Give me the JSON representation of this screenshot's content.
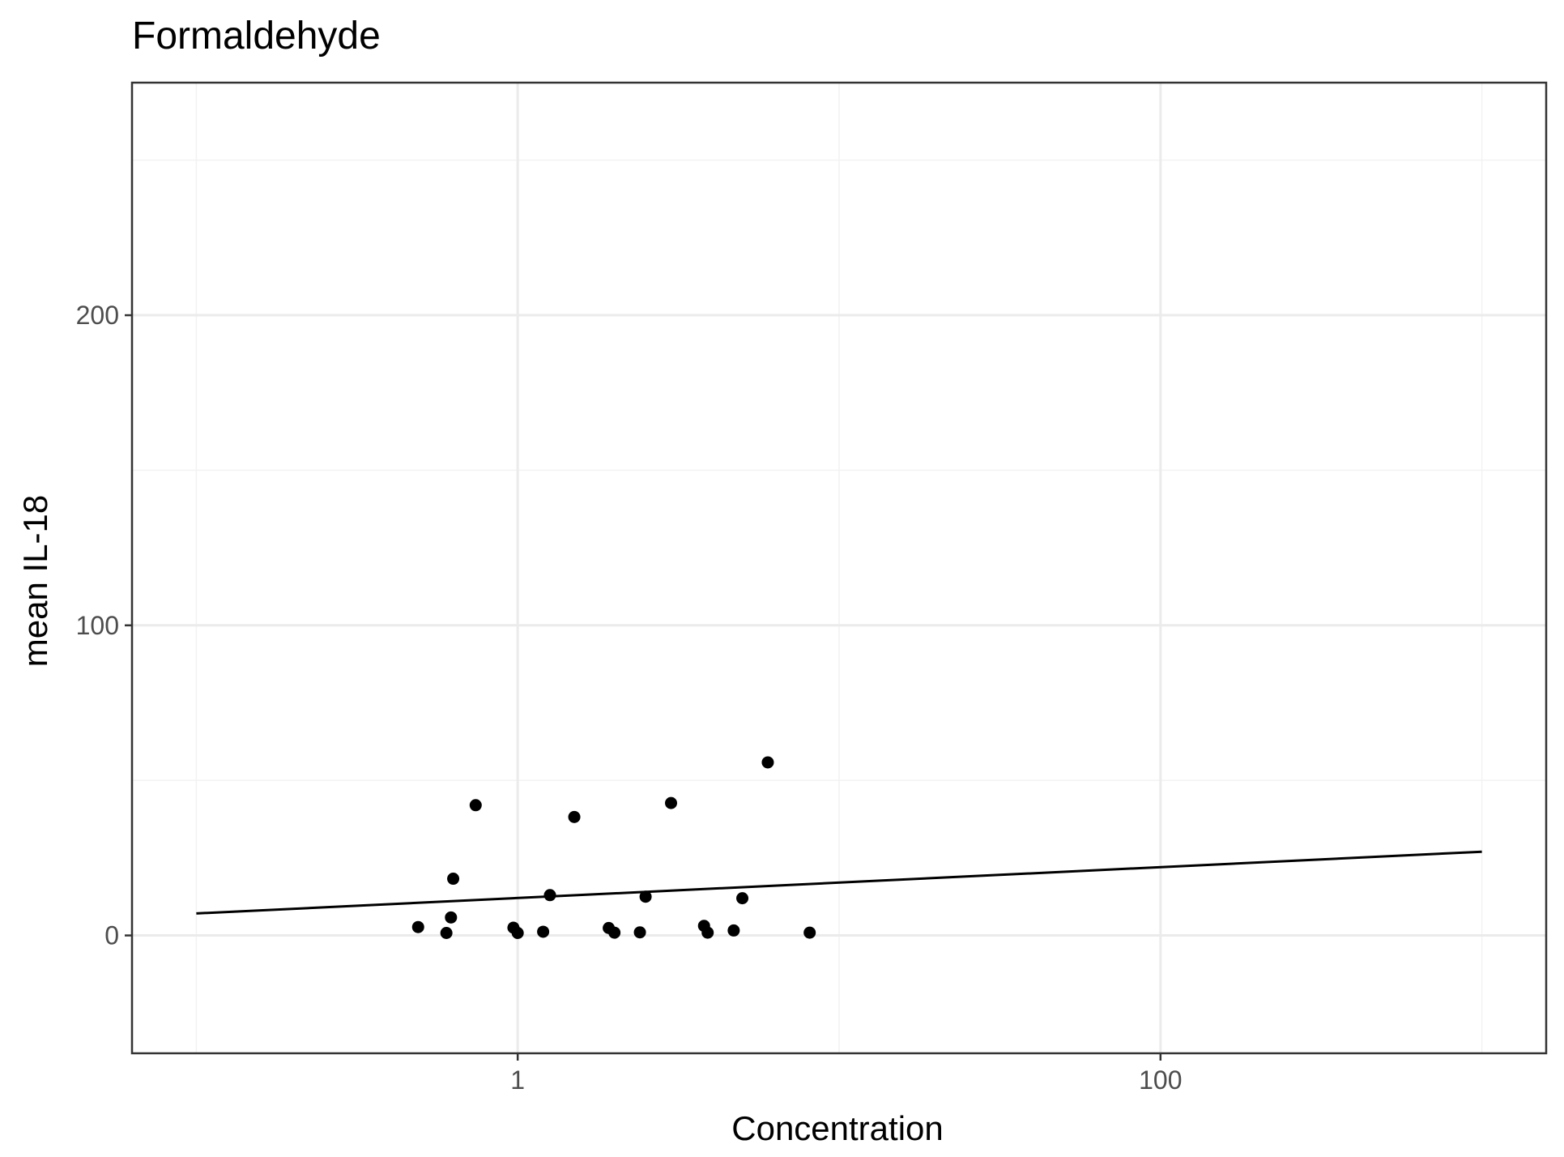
{
  "chart_data": {
    "type": "scatter",
    "title": "Formaldehyde",
    "xlabel": "Concentration",
    "ylabel": "mean IL-18",
    "x_scale": "log10",
    "xlim": [
      0.1,
      1000
    ],
    "ylim": [
      -38,
      275
    ],
    "x_ticks": [
      {
        "value": 1,
        "label": "1"
      },
      {
        "value": 100,
        "label": "100"
      }
    ],
    "x_minor_ticks": [
      0.1,
      10,
      1000
    ],
    "y_ticks": [
      {
        "value": 0,
        "label": "0"
      },
      {
        "value": 100,
        "label": "100"
      },
      {
        "value": 200,
        "label": "200"
      }
    ],
    "y_minor_ticks": [
      50,
      150,
      250
    ],
    "grid": true,
    "points": [
      {
        "x": 0.49,
        "y": 2.7
      },
      {
        "x": 0.6,
        "y": 0.8
      },
      {
        "x": 0.62,
        "y": 5.8
      },
      {
        "x": 0.63,
        "y": 18.3
      },
      {
        "x": 0.74,
        "y": 42
      },
      {
        "x": 0.97,
        "y": 2.5
      },
      {
        "x": 1.0,
        "y": 0.8
      },
      {
        "x": 1.2,
        "y": 1.2
      },
      {
        "x": 1.26,
        "y": 13
      },
      {
        "x": 1.5,
        "y": 38.2
      },
      {
        "x": 1.92,
        "y": 2.4
      },
      {
        "x": 2.0,
        "y": 0.9
      },
      {
        "x": 2.4,
        "y": 1.0
      },
      {
        "x": 2.5,
        "y": 12.5
      },
      {
        "x": 3.0,
        "y": 42.7
      },
      {
        "x": 3.8,
        "y": 3.1
      },
      {
        "x": 3.9,
        "y": 0.9
      },
      {
        "x": 4.7,
        "y": 1.6
      },
      {
        "x": 5.0,
        "y": 12.0
      },
      {
        "x": 6.0,
        "y": 55.8
      },
      {
        "x": 8.1,
        "y": 0.9
      }
    ],
    "fit_line": {
      "x": [
        0.1,
        1000
      ],
      "y": [
        7.1,
        27.0
      ]
    },
    "colors": {
      "points": "#000000",
      "line": "#000000",
      "grid_major": "#ebebeb",
      "grid_minor": "#f2f2f2",
      "tick_labels": "#4d4d4d"
    }
  }
}
